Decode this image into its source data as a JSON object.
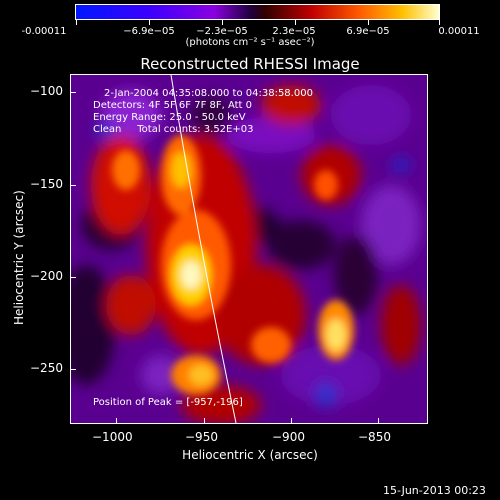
{
  "colorbar": {
    "tick_labels": [
      "-0.00011",
      "−6.9e−05",
      "−2.3e−05",
      "2.3e−05",
      "6.9e−05",
      "0.00011"
    ],
    "units": "(photons cm⁻² s⁻¹ asec⁻²)"
  },
  "title": "Reconstructed RHESSI Image",
  "annotations": {
    "time_range": "2-Jan-2004 04:35:08.000 to 04:38:58.000",
    "detectors": "Detectors: 4F 5F 6F 7F 8F, Att 0",
    "energy": "Energy Range: 25.0 - 50.0 keV",
    "clean": "Clean     Total counts: 3.52E+03",
    "peak": "Position of Peak = [-957,-196]"
  },
  "axes": {
    "xlabel": "Heliocentric X (arcsec)",
    "ylabel": "Heliocentric Y (arcsec)",
    "xticks": [
      "−1000",
      "−950",
      "−900",
      "−850"
    ],
    "yticks": [
      "−100",
      "−150",
      "−200",
      "−250"
    ]
  },
  "footer_date": "15-Jun-2013 00:23"
}
